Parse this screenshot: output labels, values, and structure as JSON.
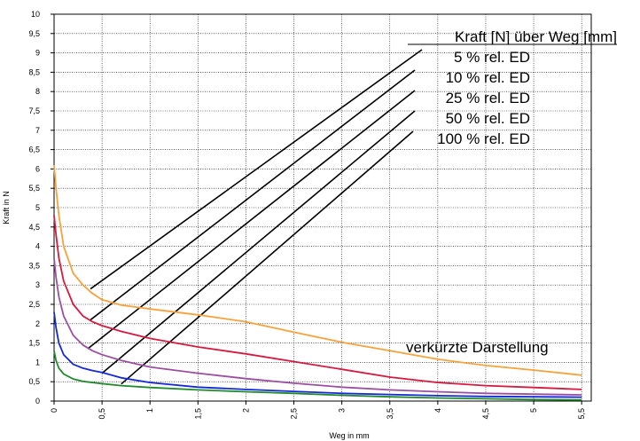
{
  "chart_data": {
    "type": "line",
    "xlabel": "Weg in mm",
    "ylabel": "Kraft in N",
    "xlim": [
      0,
      5.6
    ],
    "ylim": [
      0,
      10
    ],
    "x_ticks": [
      "0",
      "0,5",
      "1",
      "1,5",
      "2",
      "2,5",
      "3",
      "3,5",
      "4",
      "4,5",
      "5",
      "5,5"
    ],
    "y_ticks": [
      "0",
      "0,5",
      "1",
      "1,5",
      "2",
      "2,5",
      "3",
      "3,5",
      "4",
      "4,5",
      "5",
      "5,5",
      "6",
      "6,5",
      "7",
      "7,5",
      "8",
      "8,5",
      "9",
      "9,5",
      "10"
    ],
    "grid": true,
    "legend_title": "Kraft [N] über Weg [mm]",
    "annotation": "verkürzte Darstellung",
    "series": [
      {
        "name": "5 % rel. ED",
        "color": "#f7a23a",
        "x": [
          0.0,
          0.02,
          0.05,
          0.1,
          0.2,
          0.3,
          0.4,
          0.5,
          0.7,
          1.0,
          1.5,
          2.0,
          2.5,
          3.0,
          3.5,
          4.0,
          4.5,
          5.0,
          5.5
        ],
        "y": [
          6.1,
          5.5,
          4.8,
          4.0,
          3.3,
          3.0,
          2.78,
          2.62,
          2.48,
          2.38,
          2.23,
          2.05,
          1.78,
          1.52,
          1.3,
          1.08,
          0.92,
          0.8,
          0.67
        ]
      },
      {
        "name": "10 % rel. ED",
        "color": "#d7193f",
        "x": [
          0.0,
          0.02,
          0.05,
          0.1,
          0.2,
          0.3,
          0.4,
          0.5,
          0.7,
          1.0,
          1.5,
          2.0,
          2.5,
          3.0,
          3.5,
          4.0,
          4.5,
          5.0,
          5.5
        ],
        "y": [
          4.8,
          4.3,
          3.7,
          3.1,
          2.5,
          2.2,
          2.05,
          1.95,
          1.8,
          1.62,
          1.4,
          1.22,
          1.02,
          0.82,
          0.62,
          0.48,
          0.4,
          0.35,
          0.3
        ]
      },
      {
        "name": "25 % rel. ED",
        "color": "#9b4fa0",
        "x": [
          0.0,
          0.02,
          0.05,
          0.1,
          0.2,
          0.3,
          0.4,
          0.5,
          0.7,
          1.0,
          1.5,
          2.0,
          2.5,
          3.0,
          3.5,
          4.0,
          4.5,
          5.0,
          5.5
        ],
        "y": [
          3.7,
          3.2,
          2.7,
          2.2,
          1.7,
          1.45,
          1.3,
          1.2,
          1.05,
          0.88,
          0.72,
          0.58,
          0.46,
          0.36,
          0.29,
          0.24,
          0.2,
          0.18,
          0.16
        ]
      },
      {
        "name": "50 % rel. ED",
        "color": "#1428d8",
        "x": [
          0.0,
          0.02,
          0.05,
          0.1,
          0.2,
          0.3,
          0.4,
          0.5,
          0.7,
          1.0,
          1.5,
          2.0,
          2.5,
          3.0,
          3.5,
          4.0,
          4.5,
          5.0,
          5.5
        ],
        "y": [
          2.3,
          1.9,
          1.5,
          1.2,
          0.95,
          0.85,
          0.79,
          0.74,
          0.6,
          0.48,
          0.36,
          0.3,
          0.25,
          0.2,
          0.17,
          0.14,
          0.12,
          0.11,
          0.1
        ]
      },
      {
        "name": "100 % rel. ED",
        "color": "#1f8a2b",
        "x": [
          0.0,
          0.02,
          0.05,
          0.1,
          0.2,
          0.3,
          0.4,
          0.5,
          0.7,
          1.0,
          1.5,
          2.0,
          2.5,
          3.0,
          3.5,
          4.0,
          4.5,
          5.0,
          5.5
        ],
        "y": [
          1.3,
          1.05,
          0.85,
          0.7,
          0.57,
          0.51,
          0.48,
          0.45,
          0.4,
          0.35,
          0.29,
          0.24,
          0.2,
          0.15,
          0.11,
          0.08,
          0.06,
          0.04,
          0.03
        ]
      }
    ],
    "legend_pointers": [
      {
        "label_index": 0,
        "to_x": 0.38,
        "to_y": 2.9
      },
      {
        "label_index": 1,
        "to_x": 0.38,
        "to_y": 2.1
      },
      {
        "label_index": 2,
        "to_x": 0.35,
        "to_y": 1.35
      },
      {
        "label_index": 3,
        "to_x": 0.5,
        "to_y": 0.72
      },
      {
        "label_index": 4,
        "to_x": 0.7,
        "to_y": 0.44
      }
    ]
  }
}
